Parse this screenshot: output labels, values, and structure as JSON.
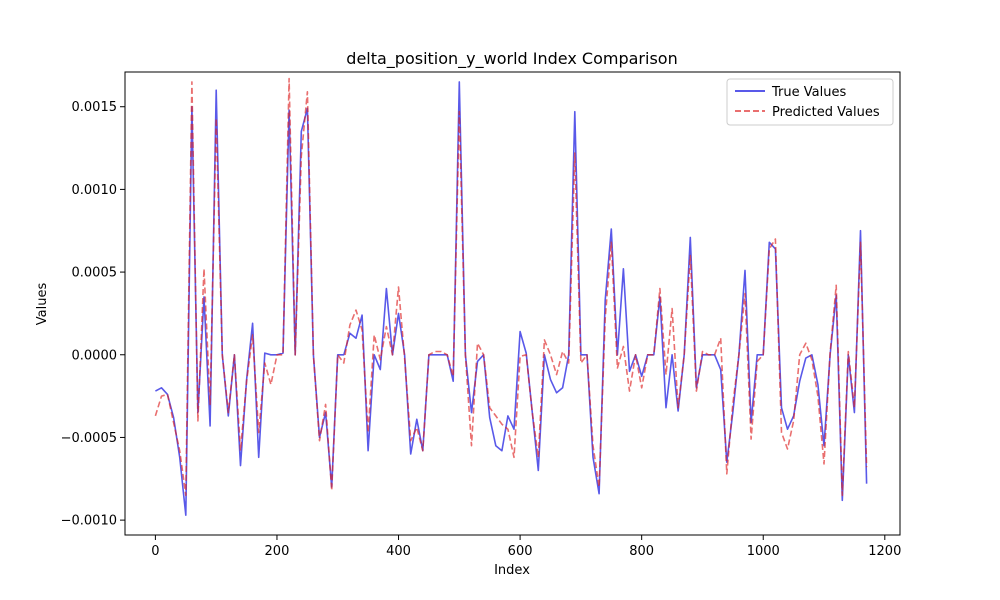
{
  "chart_data": {
    "type": "line",
    "title": "delta_position_y_world Index Comparison",
    "xlabel": "Index",
    "ylabel": "Values",
    "xlim": [
      -50,
      1225
    ],
    "ylim": [
      -0.00109,
      0.00171
    ],
    "xticks": [
      0,
      200,
      400,
      600,
      800,
      1000,
      1200
    ],
    "xtick_labels": [
      "0",
      "200",
      "400",
      "600",
      "800",
      "1000",
      "1200"
    ],
    "yticks": [
      -0.001,
      -0.0005,
      0.0,
      0.0005,
      0.001,
      0.0015
    ],
    "ytick_labels": [
      "−0.0010",
      "−0.0005",
      "0.0000",
      "0.0005",
      "0.0010",
      "0.0015"
    ],
    "grid": false,
    "legend": "top-right",
    "x": [
      0,
      10,
      20,
      30,
      40,
      50,
      60,
      70,
      80,
      90,
      100,
      110,
      120,
      130,
      140,
      150,
      160,
      170,
      180,
      190,
      200,
      210,
      220,
      230,
      240,
      250,
      260,
      270,
      280,
      290,
      300,
      310,
      320,
      330,
      340,
      350,
      360,
      370,
      380,
      390,
      400,
      410,
      420,
      430,
      440,
      450,
      460,
      470,
      480,
      490,
      500,
      510,
      520,
      530,
      540,
      550,
      560,
      570,
      580,
      590,
      600,
      610,
      620,
      630,
      640,
      650,
      660,
      670,
      680,
      690,
      700,
      710,
      720,
      730,
      740,
      750,
      760,
      770,
      780,
      790,
      800,
      810,
      820,
      830,
      840,
      850,
      860,
      870,
      880,
      890,
      900,
      910,
      920,
      930,
      940,
      950,
      960,
      970,
      980,
      990,
      1000,
      1010,
      1020,
      1030,
      1040,
      1050,
      1060,
      1070,
      1080,
      1090,
      1100,
      1110,
      1120,
      1130,
      1140,
      1150,
      1160,
      1170
    ],
    "series": [
      {
        "name": "True Values",
        "color": "#0000dd",
        "dash": "solid",
        "values": [
          -0.00022,
          -0.0002,
          -0.00024,
          -0.00038,
          -0.00062,
          -0.00097,
          0.0015,
          -0.00035,
          0.00035,
          -0.00043,
          0.0016,
          0.0,
          -0.00037,
          0.0,
          -0.00067,
          -0.00015,
          0.00019,
          -0.00062,
          1e-05,
          0.0,
          0.0,
          1e-05,
          0.00148,
          0.0,
          0.00135,
          0.00149,
          0.0,
          -0.0005,
          -0.00035,
          -0.0008,
          0.0,
          0.0,
          0.00013,
          0.0001,
          0.00024,
          -0.00058,
          0.0,
          -9e-05,
          0.0004,
          0.0,
          0.00025,
          0.0,
          -0.0006,
          -0.00039,
          -0.00058,
          0.0,
          0.0,
          0.0,
          0.0,
          -0.00016,
          0.00165,
          0.0,
          -0.00035,
          -4e-05,
          0.0,
          -0.00038,
          -0.00055,
          -0.00058,
          -0.00037,
          -0.00045,
          0.00014,
          1e-05,
          -0.00035,
          -0.0007,
          0.0,
          -0.00015,
          -0.00023,
          -0.0002,
          0.0,
          0.00147,
          0.0,
          0.0,
          -0.00062,
          -0.00084,
          0.00033,
          0.00076,
          0.0,
          0.00052,
          -0.0001,
          0.0,
          -0.00013,
          0.0,
          0.0,
          0.00035,
          -0.00032,
          0.0,
          -0.00034,
          0.0,
          0.00071,
          -0.0002,
          0.0,
          0.0,
          0.0,
          -9e-05,
          -0.00065,
          -0.00035,
          0.0,
          0.00051,
          -0.00041,
          0.0,
          0.0,
          0.00068,
          0.00064,
          -0.00032,
          -0.00045,
          -0.00037,
          -0.00016,
          -2e-05,
          0.0,
          -0.00018,
          -0.00055,
          0.0,
          0.00036,
          -0.00088,
          0.0,
          -0.00035,
          0.00075,
          -0.00078
        ]
      },
      {
        "name": "Predicted Values",
        "color": "#dd2222",
        "dash": "dashed",
        "values": [
          -0.00037,
          -0.00025,
          -0.00024,
          -0.00041,
          -0.00058,
          -0.00085,
          0.00165,
          -0.0004,
          0.00052,
          -0.0003,
          0.00143,
          0.0,
          -0.00035,
          0.0,
          -0.00058,
          -0.00016,
          0.00012,
          -0.00047,
          -5e-05,
          -0.00018,
          0.0,
          0.0,
          0.00167,
          0.0,
          0.0012,
          0.00159,
          0.0,
          -0.00052,
          -0.0003,
          -0.00082,
          0.0,
          -5e-05,
          0.00018,
          0.00027,
          0.00015,
          -0.00047,
          0.00012,
          -3e-05,
          0.00017,
          0.0,
          0.00041,
          -2e-05,
          -0.00052,
          -0.00044,
          -0.00058,
          0.0,
          2e-05,
          2e-05,
          0.0,
          -0.00013,
          0.00147,
          0.0,
          -0.00055,
          7e-05,
          0.0,
          -0.00032,
          -0.00037,
          -0.00042,
          -0.00045,
          -0.00062,
          -1e-05,
          0.0,
          -0.00035,
          -0.00062,
          9e-05,
          0.0,
          -0.00012,
          2e-05,
          -5e-05,
          0.00122,
          -5e-05,
          0.0,
          -0.00055,
          -0.0008,
          0.00022,
          0.00068,
          -8e-05,
          5e-05,
          -0.00022,
          0.0,
          -0.0002,
          0.0,
          0.0,
          0.0004,
          -0.00012,
          0.00028,
          -0.00032,
          0.0,
          0.0006,
          -0.00022,
          2e-05,
          0.0,
          0.0,
          0.0001,
          -0.00072,
          -0.0003,
          0.0,
          0.00037,
          -0.00051,
          -4e-05,
          0.0,
          0.00064,
          0.0007,
          -0.00047,
          -0.00057,
          -0.0004,
          0.0,
          7e-05,
          -3e-05,
          -0.00025,
          -0.00066,
          1e-05,
          0.00042,
          -0.00085,
          2e-05,
          -0.00032,
          0.00068,
          -0.00068
        ]
      }
    ]
  }
}
